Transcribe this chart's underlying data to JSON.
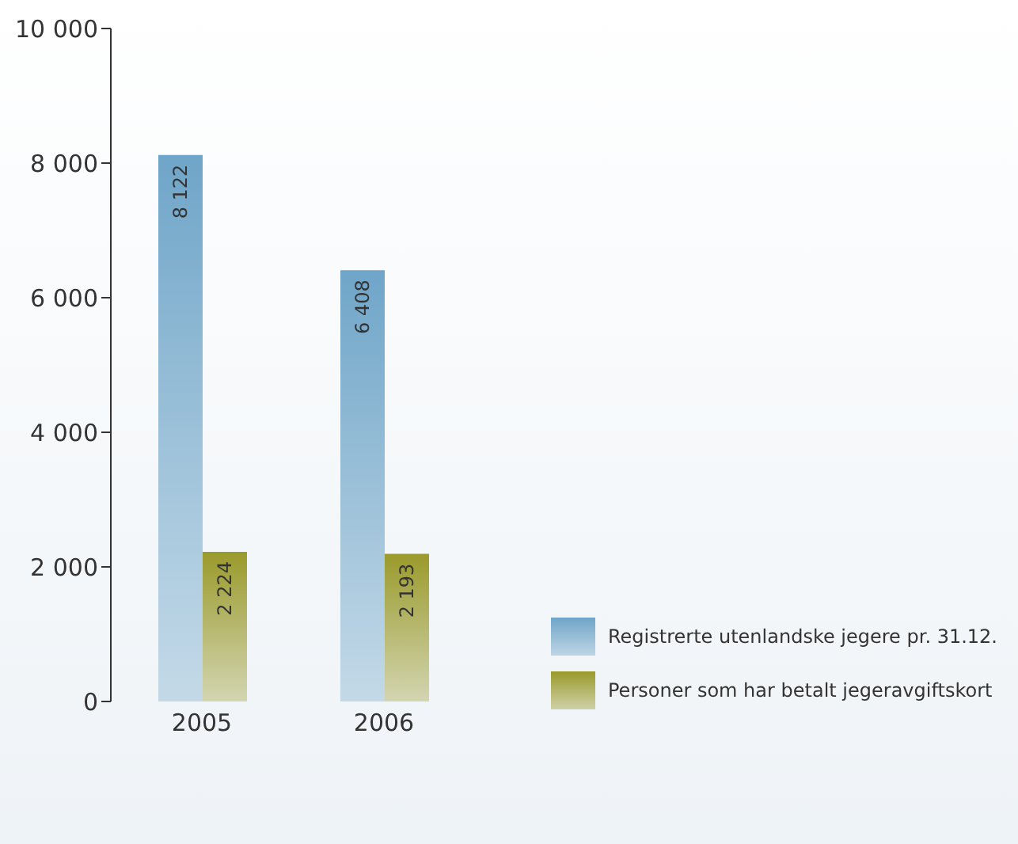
{
  "chart_data": {
    "type": "bar",
    "categories": [
      "2005",
      "2006"
    ],
    "series": [
      {
        "name": "Registrerte utenlandske jegere pr. 31.12.",
        "color": "#6fa5c8",
        "values": [
          8122,
          6408
        ],
        "value_labels": [
          "8 122",
          "6 408"
        ]
      },
      {
        "name": "Personer som har betalt jegeravgiftskort",
        "color": "#9a9a2c",
        "values": [
          2224,
          2193
        ],
        "value_labels": [
          "2 224",
          "2 193"
        ]
      }
    ],
    "ylim": [
      0,
      10000
    ],
    "yticks": [
      0,
      {
        "value": 2000,
        "label": "2 000"
      },
      {
        "value": 4000,
        "label": "4 000"
      },
      {
        "value": 6000,
        "label": "6 000"
      },
      {
        "value": 8000,
        "label": "8 000"
      },
      {
        "value": 10000,
        "label": "10 000"
      }
    ],
    "legend": "right"
  }
}
